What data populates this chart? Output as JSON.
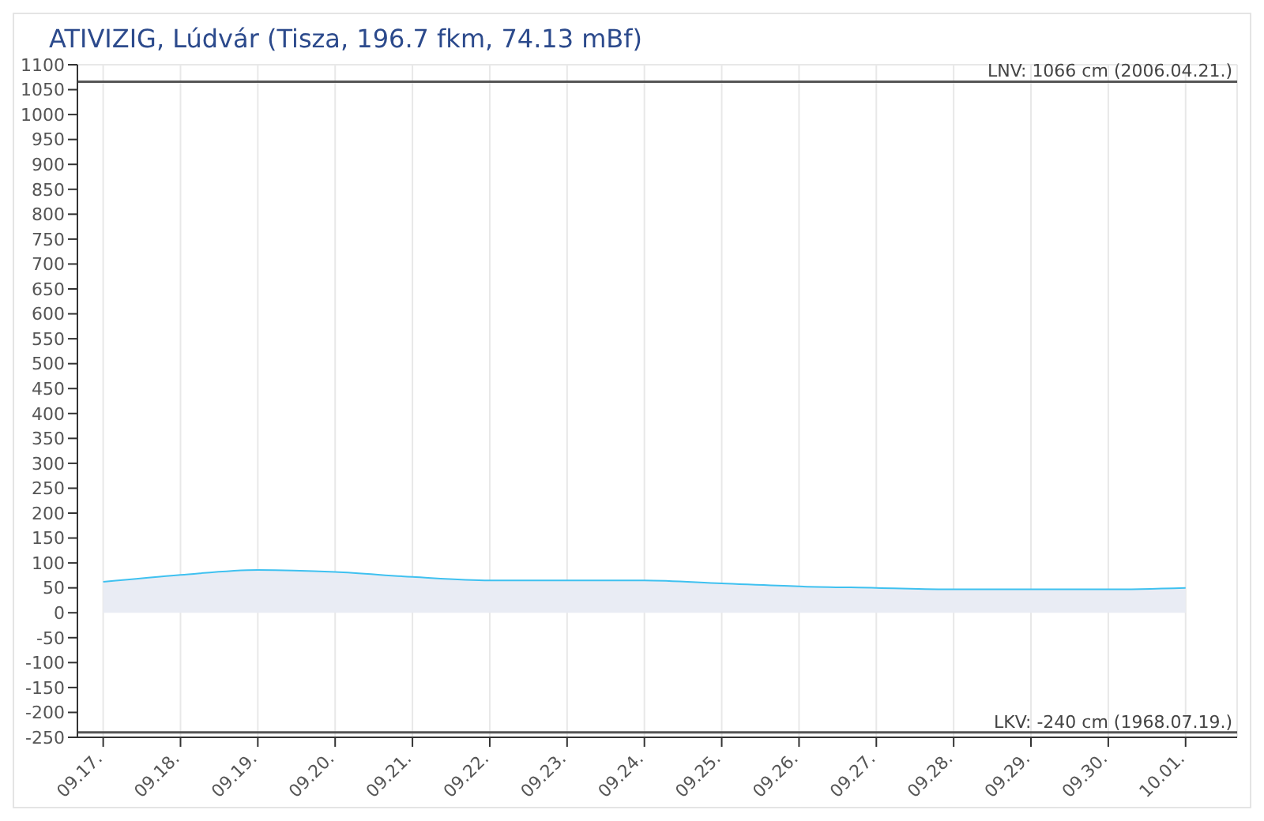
{
  "chart_data": {
    "type": "area",
    "title": "ATIVIZIG, Lúdvár (Tisza, 196.7 fkm, 74.13 mBf)",
    "x": [
      "--09-17",
      "--09-18",
      "--09-19",
      "--09-20",
      "--09-21",
      "--09-22",
      "--09-23",
      "--09-24",
      "--09-25",
      "--09-26",
      "--09-27",
      "--09-28",
      "--09-29",
      "--09-30",
      "--10-01"
    ],
    "series": [
      {
        "color": "#3fc1f0",
        "values": [
          62,
          76,
          86,
          82,
          72,
          65,
          65,
          65,
          59,
          53,
          50,
          47,
          47,
          47,
          50
        ]
      }
    ],
    "xlim": [
      "--09-16T16:00",
      "--10-01T16:00"
    ],
    "xticks": [
      {
        "value": "--09-17",
        "label": "09.17."
      },
      {
        "value": "--09-18",
        "label": "09.18."
      },
      {
        "value": "--09-19",
        "label": "09.19."
      },
      {
        "value": "--09-20",
        "label": "09.20."
      },
      {
        "value": "--09-21",
        "label": "09.21."
      },
      {
        "value": "--09-22",
        "label": "09.22."
      },
      {
        "value": "--09-23",
        "label": "09.23."
      },
      {
        "value": "--09-24",
        "label": "09.24."
      },
      {
        "value": "--09-25",
        "label": "09.25."
      },
      {
        "value": "--09-26",
        "label": "09.26."
      },
      {
        "value": "--09-27",
        "label": "09.27."
      },
      {
        "value": "--09-28",
        "label": "09.28."
      },
      {
        "value": "--09-29",
        "label": "09.29."
      },
      {
        "value": "--09-30",
        "label": "09.30."
      },
      {
        "value": "--10-01",
        "label": "10.01."
      }
    ],
    "ylim": [
      -250,
      1100
    ],
    "yticks": [
      -250,
      -200,
      -150,
      -100,
      -50,
      0,
      50,
      100,
      150,
      200,
      250,
      300,
      350,
      400,
      450,
      500,
      550,
      600,
      650,
      700,
      750,
      800,
      850,
      900,
      950,
      1000,
      1050,
      1100
    ],
    "ref_lines": [
      {
        "axis": "y",
        "value": 1066,
        "label": "LNV: 1066 cm (2006.04.21.)",
        "color": "#555555"
      },
      {
        "axis": "y",
        "value": -240,
        "label": "LKV: -240 cm (1968.07.19.)",
        "color": "#555555"
      }
    ],
    "grid": true,
    "legend": false,
    "marker": "none",
    "line_style": "solid"
  }
}
